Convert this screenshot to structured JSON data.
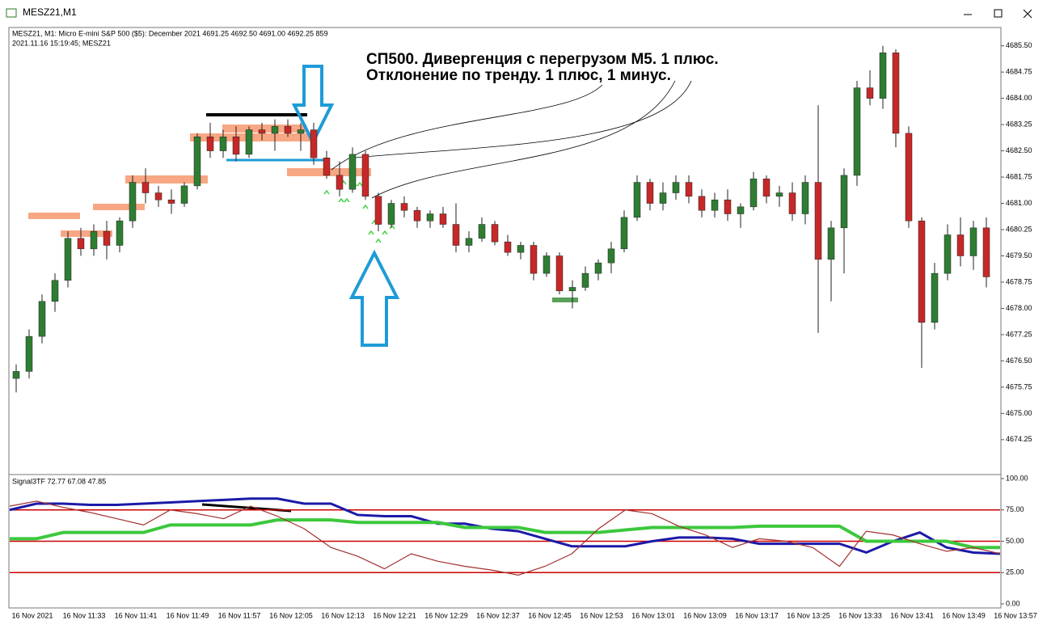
{
  "window": {
    "title": "MESZ21,M1"
  },
  "chart_data": [
    {
      "type": "candlestick",
      "header": [
        "MESZ21, M1:  Micro E-mini S&P 500 ($5): December 2021  4691.25 4692.50 4691.00 4692.25  859",
        "2021.11.16 15:19:45; MESZ21"
      ],
      "annotation": [
        "СП500. Дивергенция с перегрузом М5. 1 плюс.",
        "Отклонение по тренду. 1 плюс, 1 минус."
      ],
      "x_labels": [
        "16 Nov 2021",
        "16 Nov 11:33",
        "16 Nov 11:41",
        "16 Nov 11:49",
        "16 Nov 11:57",
        "16 Nov 12:05",
        "16 Nov 12:13",
        "16 Nov 12:21",
        "16 Nov 12:29",
        "16 Nov 12:37",
        "16 Nov 12:45",
        "16 Nov 12:53",
        "16 Nov 13:01",
        "16 Nov 13:09",
        "16 Nov 13:17",
        "16 Nov 13:25",
        "16 Nov 13:33",
        "16 Nov 13:41",
        "16 Nov 13:49",
        "16 Nov 13:57"
      ],
      "up_color": "#2e7d32",
      "down_color": "#c62828",
      "ohlc": [
        [
          4676.0,
          4676.4,
          4675.6,
          4676.2
        ],
        [
          4676.2,
          4677.4,
          4676.0,
          4677.2
        ],
        [
          4677.2,
          4678.4,
          4677.0,
          4678.2
        ],
        [
          4678.2,
          4679.0,
          4677.9,
          4678.8
        ],
        [
          4678.8,
          4680.2,
          4678.6,
          4680.0
        ],
        [
          4680.0,
          4680.3,
          4679.5,
          4679.7
        ],
        [
          4679.7,
          4680.4,
          4679.5,
          4680.2
        ],
        [
          4680.2,
          4680.5,
          4679.4,
          4679.8
        ],
        [
          4679.8,
          4680.6,
          4679.6,
          4680.5
        ],
        [
          4680.5,
          4681.8,
          4680.3,
          4681.6
        ],
        [
          4681.6,
          4682.0,
          4681.0,
          4681.3
        ],
        [
          4681.3,
          4681.5,
          4680.9,
          4681.1
        ],
        [
          4681.1,
          4681.4,
          4680.7,
          4681.0
        ],
        [
          4681.0,
          4681.6,
          4680.9,
          4681.5
        ],
        [
          4681.5,
          4683.0,
          4681.4,
          4682.9
        ],
        [
          4682.9,
          4683.3,
          4682.3,
          4682.5
        ],
        [
          4682.5,
          4683.1,
          4682.3,
          4682.9
        ],
        [
          4682.9,
          4683.2,
          4682.2,
          4682.4
        ],
        [
          4682.4,
          4683.2,
          4682.3,
          4683.1
        ],
        [
          4683.1,
          4683.3,
          4682.8,
          4683.0
        ],
        [
          4683.0,
          4683.4,
          4682.5,
          4683.2
        ],
        [
          4683.2,
          4683.4,
          4682.9,
          4683.0
        ],
        [
          4683.0,
          4683.3,
          4682.5,
          4683.1
        ],
        [
          4683.1,
          4683.3,
          4682.1,
          4682.3
        ],
        [
          4682.3,
          4682.5,
          4681.7,
          4681.8
        ],
        [
          4681.8,
          4682.2,
          4681.2,
          4681.4
        ],
        [
          4681.4,
          4682.6,
          4681.3,
          4682.4
        ],
        [
          4682.4,
          4682.5,
          4681.1,
          4681.2
        ],
        [
          4681.2,
          4681.3,
          4680.2,
          4680.4
        ],
        [
          4680.4,
          4681.1,
          4680.3,
          4681.0
        ],
        [
          4681.0,
          4681.2,
          4680.6,
          4680.8
        ],
        [
          4680.8,
          4680.9,
          4680.3,
          4680.5
        ],
        [
          4680.5,
          4680.8,
          4680.3,
          4680.7
        ],
        [
          4680.7,
          4680.9,
          4680.3,
          4680.4
        ],
        [
          4680.4,
          4681.0,
          4679.6,
          4679.8
        ],
        [
          4679.8,
          4680.2,
          4679.6,
          4680.0
        ],
        [
          4680.0,
          4680.6,
          4679.9,
          4680.4
        ],
        [
          4680.4,
          4680.5,
          4679.8,
          4679.9
        ],
        [
          4679.9,
          4680.1,
          4679.5,
          4679.6
        ],
        [
          4679.6,
          4679.9,
          4679.4,
          4679.8
        ],
        [
          4679.8,
          4679.9,
          4678.8,
          4679.0
        ],
        [
          4679.0,
          4679.6,
          4678.9,
          4679.5
        ],
        [
          4679.5,
          4679.6,
          4678.4,
          4678.5
        ],
        [
          4678.5,
          4678.8,
          4678.0,
          4678.6
        ],
        [
          4678.6,
          4679.2,
          4678.5,
          4679.0
        ],
        [
          4679.0,
          4679.4,
          4678.8,
          4679.3
        ],
        [
          4679.3,
          4679.9,
          4679.0,
          4679.7
        ],
        [
          4679.7,
          4680.8,
          4679.6,
          4680.6
        ],
        [
          4680.6,
          4681.8,
          4680.5,
          4681.6
        ],
        [
          4681.6,
          4681.7,
          4680.8,
          4681.0
        ],
        [
          4681.0,
          4681.6,
          4680.8,
          4681.3
        ],
        [
          4681.3,
          4681.8,
          4681.1,
          4681.6
        ],
        [
          4681.6,
          4681.8,
          4681.0,
          4681.2
        ],
        [
          4681.2,
          4681.4,
          4680.6,
          4680.8
        ],
        [
          4680.8,
          4681.3,
          4680.6,
          4681.1
        ],
        [
          4681.1,
          4681.4,
          4680.5,
          4680.7
        ],
        [
          4680.7,
          4681.0,
          4680.3,
          4680.9
        ],
        [
          4680.9,
          4681.9,
          4680.8,
          4681.7
        ],
        [
          4681.7,
          4681.8,
          4681.0,
          4681.2
        ],
        [
          4681.2,
          4681.5,
          4680.9,
          4681.3
        ],
        [
          4681.3,
          4681.6,
          4680.5,
          4680.7
        ],
        [
          4680.7,
          4681.8,
          4680.4,
          4681.6
        ],
        [
          4681.6,
          4683.8,
          4677.3,
          4679.4
        ],
        [
          4679.4,
          4680.5,
          4678.2,
          4680.3
        ],
        [
          4680.3,
          4682.0,
          4679.0,
          4681.8
        ],
        [
          4681.8,
          4684.5,
          4681.5,
          4684.3
        ],
        [
          4684.3,
          4684.8,
          4683.8,
          4684.0
        ],
        [
          4684.0,
          4685.5,
          4683.7,
          4685.3
        ],
        [
          4685.3,
          4685.4,
          4682.6,
          4683.0
        ],
        [
          4683.0,
          4683.2,
          4680.3,
          4680.5
        ],
        [
          4680.5,
          4680.6,
          4676.3,
          4677.6
        ],
        [
          4677.6,
          4679.3,
          4677.4,
          4679.0
        ],
        [
          4679.0,
          4680.4,
          4678.8,
          4680.1
        ],
        [
          4680.1,
          4680.6,
          4679.2,
          4679.5
        ],
        [
          4679.5,
          4680.5,
          4679.1,
          4680.3
        ],
        [
          4680.3,
          4680.6,
          4678.6,
          4678.9
        ]
      ],
      "ylim": [
        4673.3,
        4686.0
      ],
      "yticks": [
        {
          "value": 4685.5,
          "label": "4685.50"
        },
        {
          "value": 4684.75,
          "label": "4684.75"
        },
        {
          "value": 4684,
          "label": "4684.00"
        },
        {
          "value": 4683.25,
          "label": "4683.25"
        },
        {
          "value": 4682.5,
          "label": "4682.50"
        },
        {
          "value": 4681.75,
          "label": "4681.75"
        },
        {
          "value": 4681,
          "label": "4681.00"
        },
        {
          "value": 4680.25,
          "label": "4680.25"
        },
        {
          "value": 4679.5,
          "label": "4679.50"
        },
        {
          "value": 4678.75,
          "label": "4678.75"
        },
        {
          "value": 4678,
          "label": "4678.00"
        },
        {
          "value": 4677.25,
          "label": "4677.25"
        },
        {
          "value": 4676.5,
          "label": "4676.50"
        },
        {
          "value": 4675.75,
          "label": "4675.75"
        },
        {
          "value": 4675,
          "label": "4675.00"
        },
        {
          "value": 4674.25,
          "label": "4674.25"
        }
      ]
    },
    {
      "type": "line",
      "title": "Signal3TF 72.77 67.08 47.85",
      "ylim": [
        0,
        100
      ],
      "yticks": [
        {
          "value": 100,
          "label": "100.00"
        },
        {
          "value": 75,
          "label": "75.00"
        },
        {
          "value": 50,
          "label": "50.00"
        },
        {
          "value": 25,
          "label": "25.00"
        },
        {
          "value": 0,
          "label": "0.00"
        }
      ],
      "levels": [
        75,
        50,
        25
      ],
      "level_color": "#cc0000",
      "series": [
        {
          "color": "#1a1aa8",
          "values": [
            75,
            80,
            80,
            79,
            79,
            80,
            81,
            82,
            83,
            84,
            84,
            80,
            80,
            71,
            70,
            70,
            64,
            64,
            60,
            58,
            52,
            46,
            46,
            46,
            50,
            53,
            53,
            52,
            48,
            48,
            48,
            48,
            41,
            50,
            57,
            45,
            41,
            40
          ]
        },
        {
          "color": "#3cc83c",
          "values": [
            52,
            52,
            57,
            57,
            57,
            57,
            63,
            63,
            63,
            63,
            67,
            67,
            67,
            65,
            65,
            65,
            65,
            61,
            61,
            61,
            57,
            57,
            57,
            59,
            61,
            61,
            61,
            61,
            62,
            62,
            62,
            62,
            50,
            50,
            50,
            50,
            45,
            45
          ]
        },
        {
          "color": "#a33030",
          "values": [
            78,
            82,
            77,
            73,
            68,
            63,
            75,
            72,
            68,
            78,
            70,
            60,
            45,
            38,
            28,
            40,
            34,
            30,
            27,
            23,
            30,
            40,
            60,
            75,
            72,
            62,
            55,
            45,
            52,
            50,
            45,
            30,
            58,
            55,
            48,
            42,
            45,
            40
          ]
        }
      ]
    }
  ]
}
